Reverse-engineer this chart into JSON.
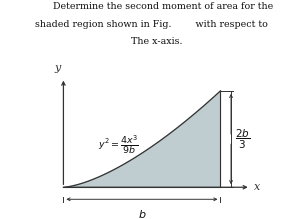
{
  "title_line1": "        Determine the second moment of area for the",
  "title_line2": "shaded region shown in Fig.        with respect to",
  "subtitle": "    The x-axis.",
  "label_b": "b",
  "label_2b3": "\\frac{2b}{3}",
  "label_x": "x",
  "label_y": "y",
  "shaded_color": "#b8c8cc",
  "shaded_alpha": 0.9,
  "bg_color": "#ffffff",
  "curve_color": "#333333",
  "axis_color": "#333333",
  "text_color": "#111111",
  "fig_width": 3.02,
  "fig_height": 2.19,
  "dpi": 100,
  "ox": 0.21,
  "oy": 0.145,
  "pw": 0.52,
  "ph": 0.44
}
